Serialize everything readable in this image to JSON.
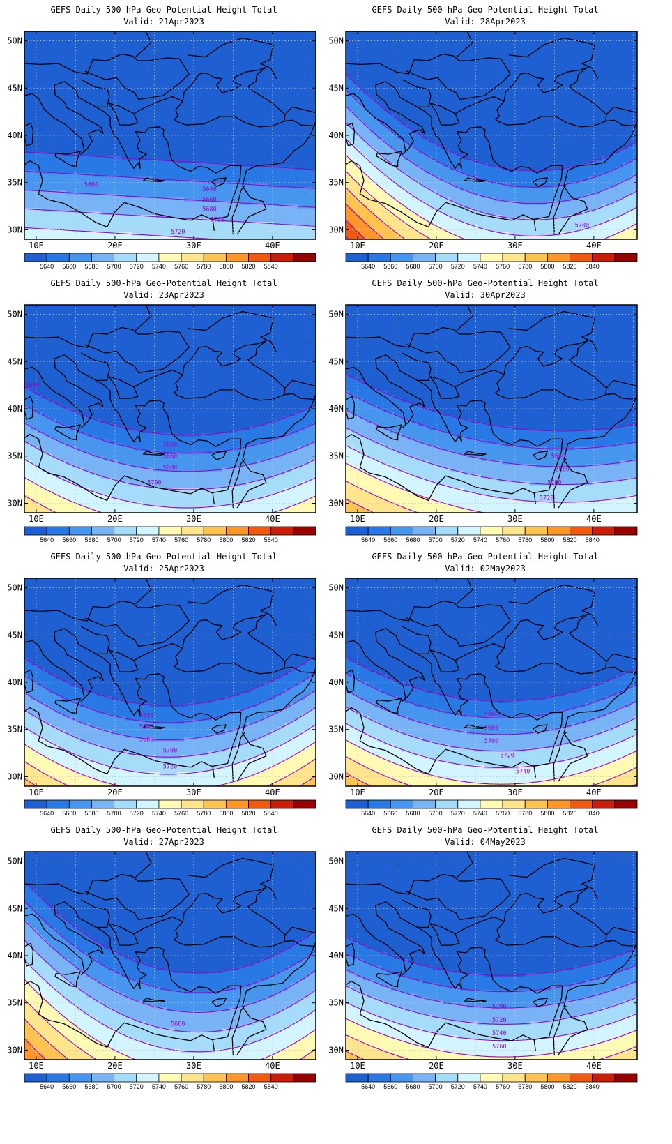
{
  "figure": {
    "title_prefix": "GEFS Daily 500-hPa Geo-Potential Height Total",
    "colorbar": {
      "levels": [
        "5640",
        "5660",
        "5680",
        "5700",
        "5720",
        "5740",
        "5760",
        "5780",
        "5800",
        "5820",
        "5840"
      ],
      "colors": [
        "#1e5fd2",
        "#2878e6",
        "#4696f0",
        "#78b4f5",
        "#a5dcfa",
        "#d2f5ff",
        "#fffab4",
        "#ffe68c",
        "#ffc350",
        "#ff9628",
        "#f05a0f",
        "#c81e0a",
        "#960000"
      ]
    },
    "axes": {
      "lon_ticks": [
        "10E",
        "20E",
        "30E",
        "40E"
      ],
      "lat_ticks": [
        "50N",
        "45N",
        "40N",
        "35N",
        "30N"
      ],
      "lon_range": [
        8.5,
        45.5
      ],
      "lat_range": [
        29,
        51
      ]
    },
    "contour_color": "#a000c8",
    "coast_color": "#000000"
  },
  "chart_data": [
    {
      "type": "heatmap",
      "title": "GEFS Daily 500-hPa Geo-Potential Height Total",
      "subtitle": "Valid: 21Apr2023",
      "field": {
        "kind": "zonal",
        "a": 5684,
        "b": 10,
        "c": -0.5,
        "lat0": 33
      },
      "contour_labels": [
        {
          "text": "5660",
          "lon": 17,
          "lat": 34.8
        },
        {
          "text": "5640",
          "lon": 32,
          "lat": 34.3
        },
        {
          "text": "5660",
          "lon": 32,
          "lat": 33.2
        },
        {
          "text": "5680",
          "lon": 32,
          "lat": 32.2
        },
        {
          "text": "5700",
          "lon": 33,
          "lat": 31.1
        },
        {
          "text": "5720",
          "lon": 28,
          "lat": 29.8
        }
      ]
    },
    {
      "type": "heatmap",
      "title": "GEFS Daily 500-hPa Geo-Potential Height Total",
      "subtitle": "Valid: 28Apr2023",
      "field": {
        "kind": "trough",
        "a": 5678,
        "b": 11.6,
        "c": -0.6,
        "k": 0.018,
        "lon0": 31
      },
      "contour_labels": [
        {
          "text": "5700",
          "lon": 38.5,
          "lat": 30.5
        }
      ]
    },
    {
      "type": "heatmap",
      "title": "GEFS Daily 500-hPa Geo-Potential Height Total",
      "subtitle": "Valid: 23Apr2023",
      "field": {
        "kind": "trough",
        "a": 5684,
        "b": 10.4,
        "c": -0.3,
        "k": 0.012,
        "lon0": 28
      },
      "contour_labels": [
        {
          "text": "5640",
          "lon": 9.5,
          "lat": 42.5
        },
        {
          "text": "5660",
          "lon": 27,
          "lat": 36.2
        },
        {
          "text": "5660",
          "lon": 27,
          "lat": 35.0
        },
        {
          "text": "5680",
          "lon": 27,
          "lat": 33.8
        },
        {
          "text": "5700",
          "lon": 25,
          "lat": 32.2
        }
      ]
    },
    {
      "type": "heatmap",
      "title": "GEFS Daily 500-hPa Geo-Potential Height Total",
      "subtitle": "Valid: 30Apr2023",
      "field": {
        "kind": "trough",
        "a": 5690,
        "b": 10.6,
        "c": -0.5,
        "k": 0.008,
        "lon0": 33
      },
      "contour_labels": [
        {
          "text": "5660",
          "lon": 35.5,
          "lat": 35.0
        },
        {
          "text": "5680",
          "lon": 36,
          "lat": 33.6
        },
        {
          "text": "5700",
          "lon": 35,
          "lat": 32.2
        },
        {
          "text": "5720",
          "lon": 34,
          "lat": 30.6
        }
      ]
    },
    {
      "type": "heatmap",
      "title": "GEFS Daily 500-hPa Geo-Potential Height Total",
      "subtitle": "Valid: 25Apr2023",
      "field": {
        "kind": "trough",
        "a": 5690,
        "b": 11,
        "c": -0.25,
        "k": 0.015,
        "lon0": 26
      },
      "contour_labels": [
        {
          "text": "5640",
          "lon": 24,
          "lat": 36.5
        },
        {
          "text": "5660",
          "lon": 24,
          "lat": 35.3
        },
        {
          "text": "5680",
          "lon": 24,
          "lat": 34.0
        },
        {
          "text": "5700",
          "lon": 27,
          "lat": 32.8
        },
        {
          "text": "5720",
          "lon": 27,
          "lat": 31.1
        }
      ]
    },
    {
      "type": "heatmap",
      "title": "GEFS Daily 500-hPa Geo-Potential Height Total",
      "subtitle": "Valid: 02May2023",
      "field": {
        "kind": "trough",
        "a": 5697,
        "b": 11.4,
        "c": -0.35,
        "k": 0.012,
        "lon0": 27
      },
      "contour_labels": [
        {
          "text": "5660",
          "lon": 27,
          "lat": 36.6
        },
        {
          "text": "5680",
          "lon": 27,
          "lat": 35.2
        },
        {
          "text": "5700",
          "lon": 27,
          "lat": 33.8
        },
        {
          "text": "5720",
          "lon": 29,
          "lat": 32.3
        },
        {
          "text": "5740",
          "lon": 31,
          "lat": 30.6
        }
      ]
    },
    {
      "type": "heatmap",
      "title": "GEFS Daily 500-hPa Geo-Potential Height Total",
      "subtitle": "Valid: 27Apr2023",
      "field": {
        "kind": "trough",
        "a": 5690,
        "b": 9.6,
        "c": -0.6,
        "k": 0.02,
        "lon0": 29
      },
      "contour_labels": [
        {
          "text": "5660",
          "lon": 28,
          "lat": 32.8
        }
      ]
    },
    {
      "type": "heatmap",
      "title": "GEFS Daily 500-hPa Geo-Potential Height Total",
      "subtitle": "Valid: 04May2023",
      "field": {
        "kind": "trough",
        "a": 5697,
        "b": 11.6,
        "c": -0.15,
        "k": 0.01,
        "lon0": 28
      },
      "contour_labels": [
        {
          "text": "5700",
          "lon": 28,
          "lat": 34.6
        },
        {
          "text": "5720",
          "lon": 28,
          "lat": 33.2
        },
        {
          "text": "5740",
          "lon": 28,
          "lat": 31.8
        },
        {
          "text": "5760",
          "lon": 28,
          "lat": 30.4
        }
      ]
    }
  ]
}
